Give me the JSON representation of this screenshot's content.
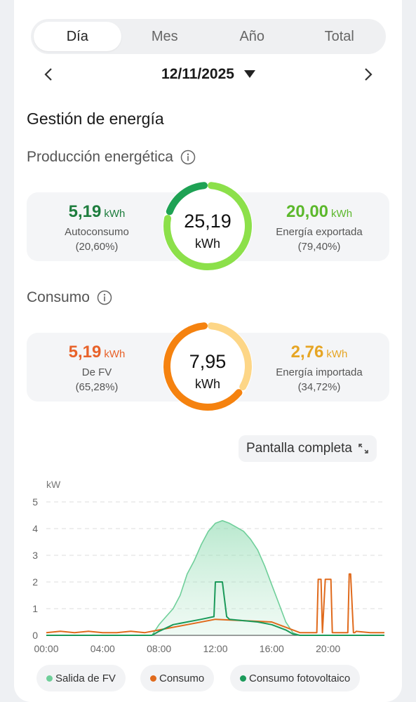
{
  "tabs": [
    {
      "label": "Día",
      "active": true
    },
    {
      "label": "Mes",
      "active": false
    },
    {
      "label": "Año",
      "active": false
    },
    {
      "label": "Total",
      "active": false
    }
  ],
  "date": "12/11/2025",
  "section_title": "Gestión de energía",
  "production": {
    "title": "Producción energética",
    "left": {
      "value": "5,19",
      "unit": "kWh",
      "label": "Autoconsumo",
      "pct": "(20,60%)",
      "color": "#1e7d3e"
    },
    "center": {
      "value": "25,19",
      "unit": "kWh"
    },
    "right": {
      "value": "20,00",
      "unit": "kWh",
      "label": "Energía exportada",
      "pct": "(79,40%)",
      "color": "#5cb82c"
    },
    "ring_fraction_primary": 0.206,
    "ring_colors": {
      "primary": "#1ea254",
      "secondary": "#8ce04a"
    }
  },
  "consumption": {
    "title": "Consumo",
    "left": {
      "value": "5,19",
      "unit": "kWh",
      "label": "De FV",
      "pct": "(65,28%)",
      "color": "#e8622a"
    },
    "center": {
      "value": "7,95",
      "unit": "kWh"
    },
    "right": {
      "value": "2,76",
      "unit": "kWh",
      "label": "Energía importada",
      "pct": "(34,72%)",
      "color": "#e6a524"
    },
    "ring_fraction_primary": 0.6528,
    "ring_colors": {
      "primary": "#f5820f",
      "secondary": "#fdd687"
    }
  },
  "fullscreen_label": "Pantalla completa",
  "chart_data": {
    "type": "line",
    "ylabel": "kW",
    "ylim": [
      0,
      5
    ],
    "yticks": [
      "0",
      "1",
      "2",
      "3",
      "4",
      "5"
    ],
    "xlim": [
      0,
      24
    ],
    "xticks": [
      "00:00",
      "04:00",
      "08:00",
      "12:00",
      "16:00",
      "20:00"
    ],
    "grid": true,
    "legend_position": "bottom",
    "series": [
      {
        "name": "Salida de FV",
        "color": "#6fcf9a",
        "fill": true,
        "x": [
          0,
          7.5,
          8,
          8.5,
          9,
          9.5,
          10,
          10.5,
          11,
          11.5,
          12,
          12.5,
          13,
          13.5,
          14,
          14.5,
          15,
          15.5,
          16,
          16.5,
          17,
          17.5,
          18,
          24
        ],
        "y": [
          0,
          0,
          0.4,
          0.7,
          1.0,
          1.5,
          2.3,
          2.8,
          3.4,
          3.9,
          4.2,
          4.3,
          4.2,
          4.05,
          3.9,
          3.6,
          3.2,
          2.6,
          1.9,
          1.2,
          0.5,
          0.1,
          0,
          0
        ]
      },
      {
        "name": "Consumo",
        "color": "#e06a1c",
        "fill": false,
        "x": [
          0,
          1,
          2,
          3,
          4,
          5,
          6,
          7,
          8,
          10,
          12,
          14,
          16,
          17,
          18,
          19.2,
          19.3,
          19.5,
          19.6,
          19.8,
          20.2,
          20.3,
          20.5,
          20.6,
          21.4,
          21.5,
          21.6,
          21.8,
          21.9,
          22,
          23,
          24
        ],
        "y": [
          0.1,
          0.15,
          0.1,
          0.15,
          0.1,
          0.1,
          0.15,
          0.1,
          0.2,
          0.4,
          0.6,
          0.55,
          0.5,
          0.3,
          0.1,
          0.1,
          2.1,
          2.1,
          0.1,
          2.1,
          2.1,
          0.1,
          0.1,
          0.1,
          0.1,
          2.3,
          2.3,
          0.1,
          0.1,
          0.15,
          0.1,
          0.1
        ]
      },
      {
        "name": "Consumo fotovoltaico",
        "color": "#1b9a5a",
        "fill": false,
        "x": [
          0,
          7.5,
          8,
          9,
          10,
          11,
          11.9,
          12,
          12.5,
          12.8,
          13,
          14,
          15,
          16,
          17,
          17.5,
          18,
          24
        ],
        "y": [
          0,
          0,
          0.15,
          0.4,
          0.5,
          0.6,
          0.7,
          2.0,
          2.0,
          0.7,
          0.6,
          0.55,
          0.5,
          0.4,
          0.2,
          0.05,
          0,
          0
        ]
      }
    ]
  },
  "legend": [
    {
      "label": "Salida de FV",
      "color": "#6fcf9a"
    },
    {
      "label": "Consumo",
      "color": "#e06a1c"
    },
    {
      "label": "Consumo fotovoltaico",
      "color": "#1b9a5a"
    }
  ]
}
